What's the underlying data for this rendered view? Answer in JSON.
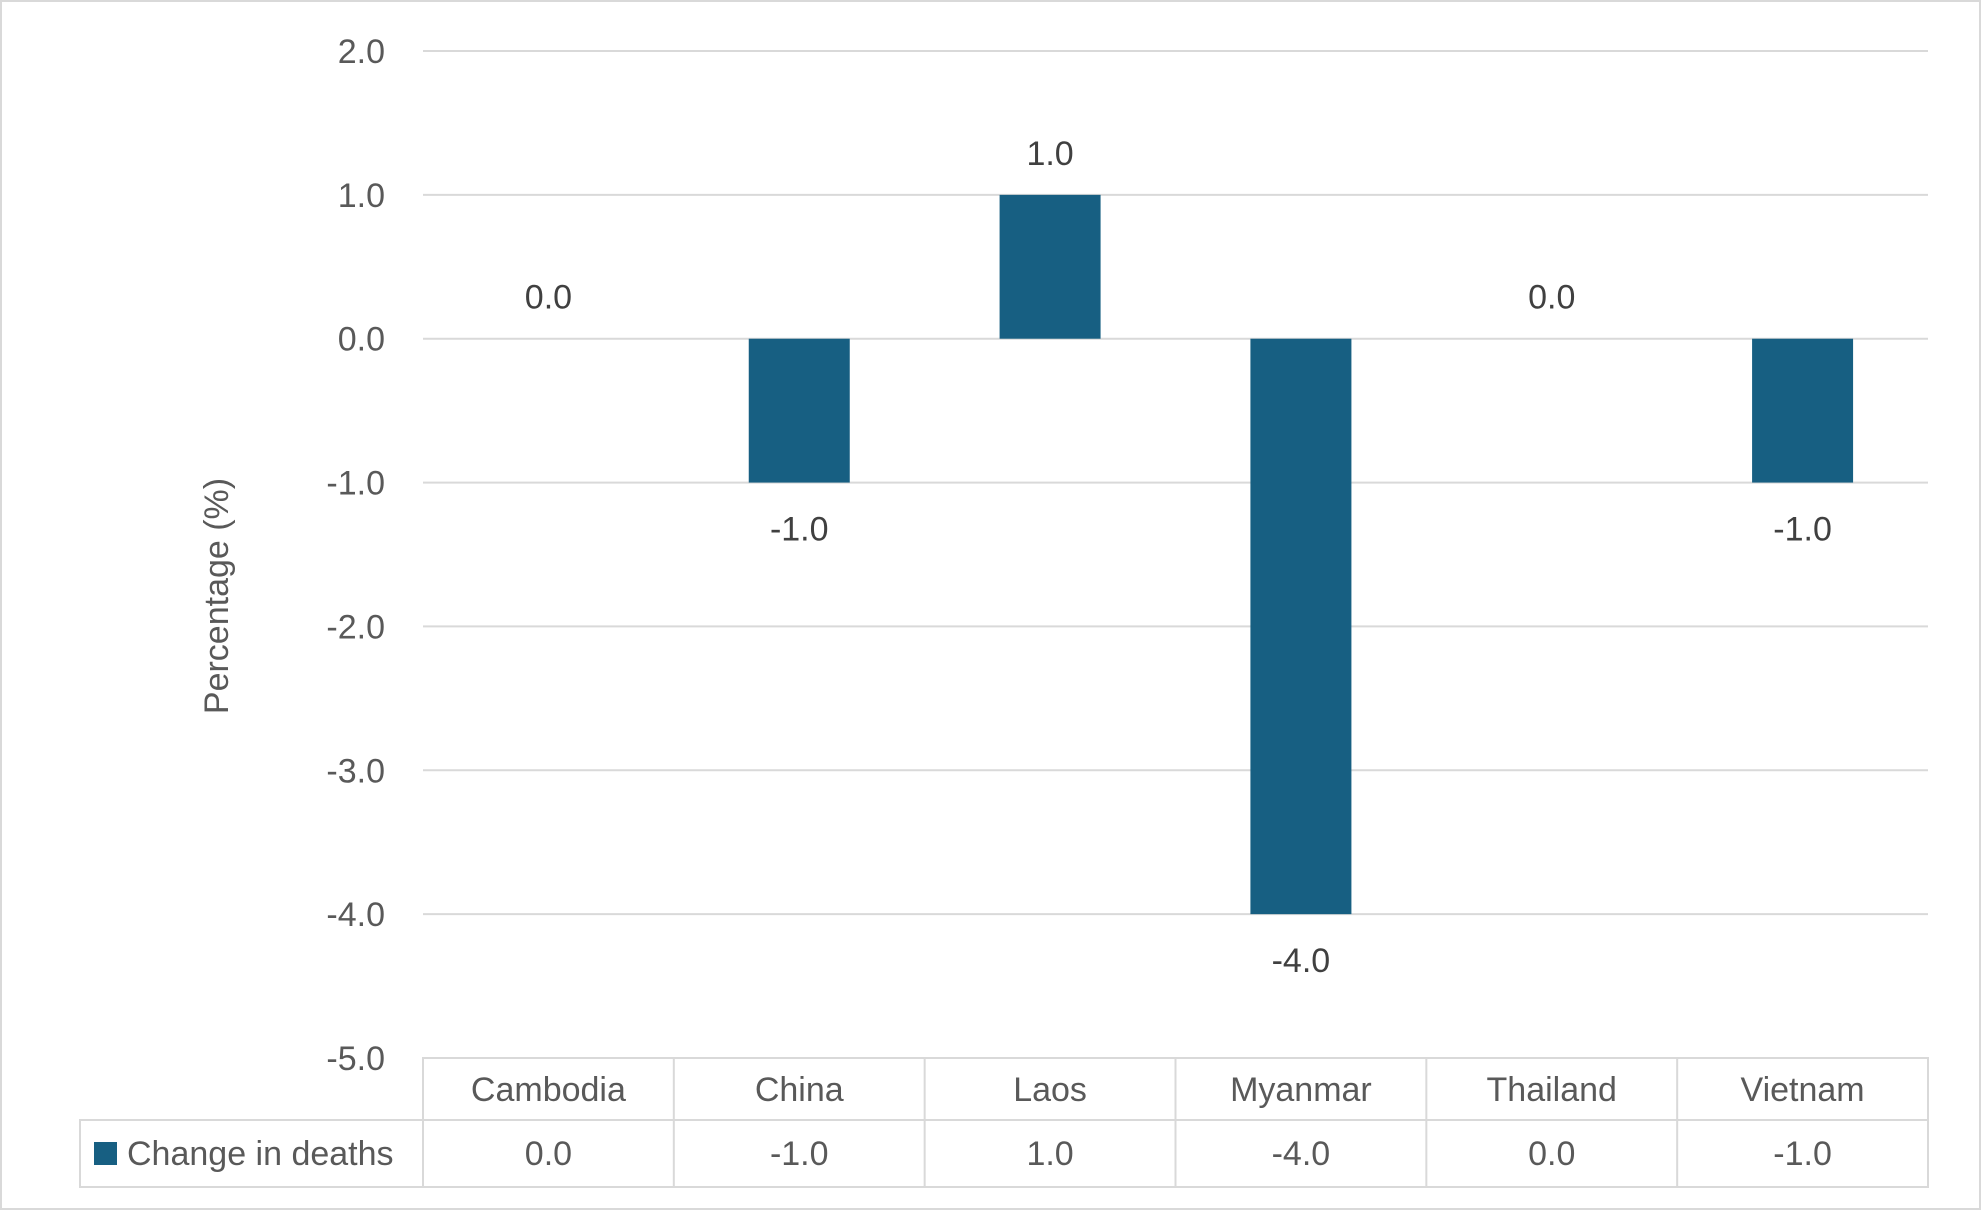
{
  "chart_data": {
    "type": "bar",
    "title": "",
    "xlabel": "",
    "ylabel": "Percentage (%)",
    "ylim": [
      -5.0,
      2.0
    ],
    "yticks": [
      "2.0",
      "1.0",
      "0.0",
      "-1.0",
      "-2.0",
      "-3.0",
      "-4.0",
      "-5.0"
    ],
    "ytick_values": [
      2,
      1,
      0,
      -1,
      -2,
      -3,
      -4,
      -5
    ],
    "grid": true,
    "categories": [
      "Cambodia",
      "China",
      "Laos",
      "Myanmar",
      "Thailand",
      "Vietnam"
    ],
    "series": [
      {
        "name": "Change in deaths",
        "values": [
          0.0,
          -1.0,
          1.0,
          -4.0,
          0.0,
          -1.0
        ],
        "labels": [
          "0.0",
          "-1.0",
          "1.0",
          "-4.0",
          "0.0",
          "-1.0"
        ],
        "color": "#175F82"
      }
    ],
    "legend": "data-table-bottom"
  }
}
